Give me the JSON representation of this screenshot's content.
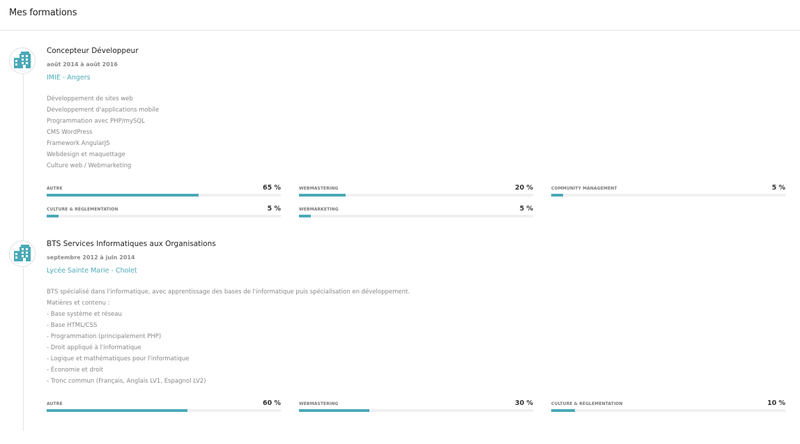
{
  "header": {
    "title": "Mes formations"
  },
  "entries": [
    {
      "title": "Concepteur Développeur",
      "date": "août 2014 à août 2016",
      "school": "IMIE - Angers",
      "description": [
        "Développement de sites web",
        "Développement d'applications mobile",
        "Programmation avec PHP/mySQL",
        "CMS WordPress",
        "Framework AngularJS",
        "Webdesign et maquettage",
        "Culture web / Webmarketing"
      ],
      "skills": [
        {
          "label": "AUTRE",
          "value": "65 %",
          "percent": 65
        },
        {
          "label": "WEBMASTERING",
          "value": "20 %",
          "percent": 20
        },
        {
          "label": "COMMUNITY MANAGEMENT",
          "value": "5 %",
          "percent": 5
        },
        {
          "label": "CULTURE & RÉGLEMENTATION",
          "value": "5 %",
          "percent": 5
        },
        {
          "label": "WEBMARKETING",
          "value": "5 %",
          "percent": 5
        }
      ]
    },
    {
      "title": "BTS Services Informatiques aux Organisations",
      "date": "septembre 2012 à juin 2014",
      "school": "Lycée Sainte Marie - Cholet",
      "description": [
        "BTS spécialisé dans l'informatique, avec apprentissage des bases de l'informatique puis spécialisation en développement.",
        "Matières et contenu :",
        "- Base système et réseau",
        "- Base HTML/CSS",
        "- Programmation (principalement PHP)",
        "- Droit appliqué à l'informatique",
        "- Logique et mathématiques pour l'informatique",
        "- Économie et droit",
        "- Tronc commun (Français, Anglais LV1, Espagnol LV2)"
      ],
      "skills": [
        {
          "label": "AUTRE",
          "value": "60 %",
          "percent": 60
        },
        {
          "label": "WEBMASTERING",
          "value": "30 %",
          "percent": 30
        },
        {
          "label": "CULTURE & RÉGLEMENTATION",
          "value": "10 %",
          "percent": 10
        }
      ]
    }
  ],
  "icon": "building-icon",
  "accent_color": "#4aa9b7"
}
